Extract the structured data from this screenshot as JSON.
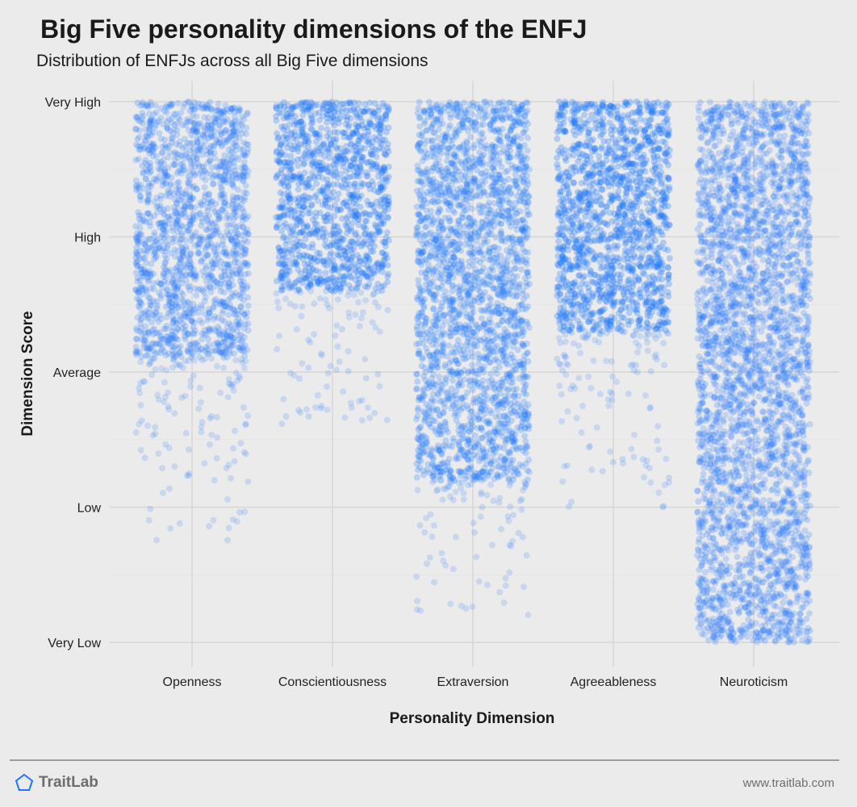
{
  "header": {
    "title": "Big Five personality dimensions of the ENFJ",
    "subtitle": "Distribution of ENFJs across all Big Five dimensions"
  },
  "footer": {
    "brand": "TraitLab",
    "brand_icon": "pentagon-icon",
    "url": "www.traitlab.com"
  },
  "colors": {
    "point": "#1f77fd",
    "background": "#ebebeb",
    "grid": "#d6d6d6"
  },
  "chart_data": {
    "type": "scatter",
    "subtype": "jittered strip plot",
    "xlabel": "Personality Dimension",
    "ylabel": "Dimension Score",
    "categories": [
      "Openness",
      "Conscientiousness",
      "Extraversion",
      "Agreeableness",
      "Neuroticism"
    ],
    "y_ticks": [
      "Very Low",
      "Low",
      "Average",
      "High",
      "Very High"
    ],
    "ylim": [
      "Very Low",
      "Very High"
    ],
    "grid": true,
    "legend": "none",
    "series": [
      {
        "category": "Openness",
        "score_min": 0.75,
        "score_max": 4.0,
        "dense_from": 2.1,
        "density_level": 0.55
      },
      {
        "category": "Conscientiousness",
        "score_min": 1.6,
        "score_max": 4.0,
        "dense_from": 2.6,
        "density_level": 0.85
      },
      {
        "category": "Extraversion",
        "score_min": 0.2,
        "score_max": 4.0,
        "dense_from": 1.2,
        "density_level": 0.6
      },
      {
        "category": "Agreeableness",
        "score_min": 1.0,
        "score_max": 4.0,
        "dense_from": 2.3,
        "density_level": 0.95
      },
      {
        "category": "Neuroticism",
        "score_min": 0.0,
        "score_max": 4.0,
        "dense_from": 0.0,
        "density_level": 0.5
      }
    ]
  }
}
